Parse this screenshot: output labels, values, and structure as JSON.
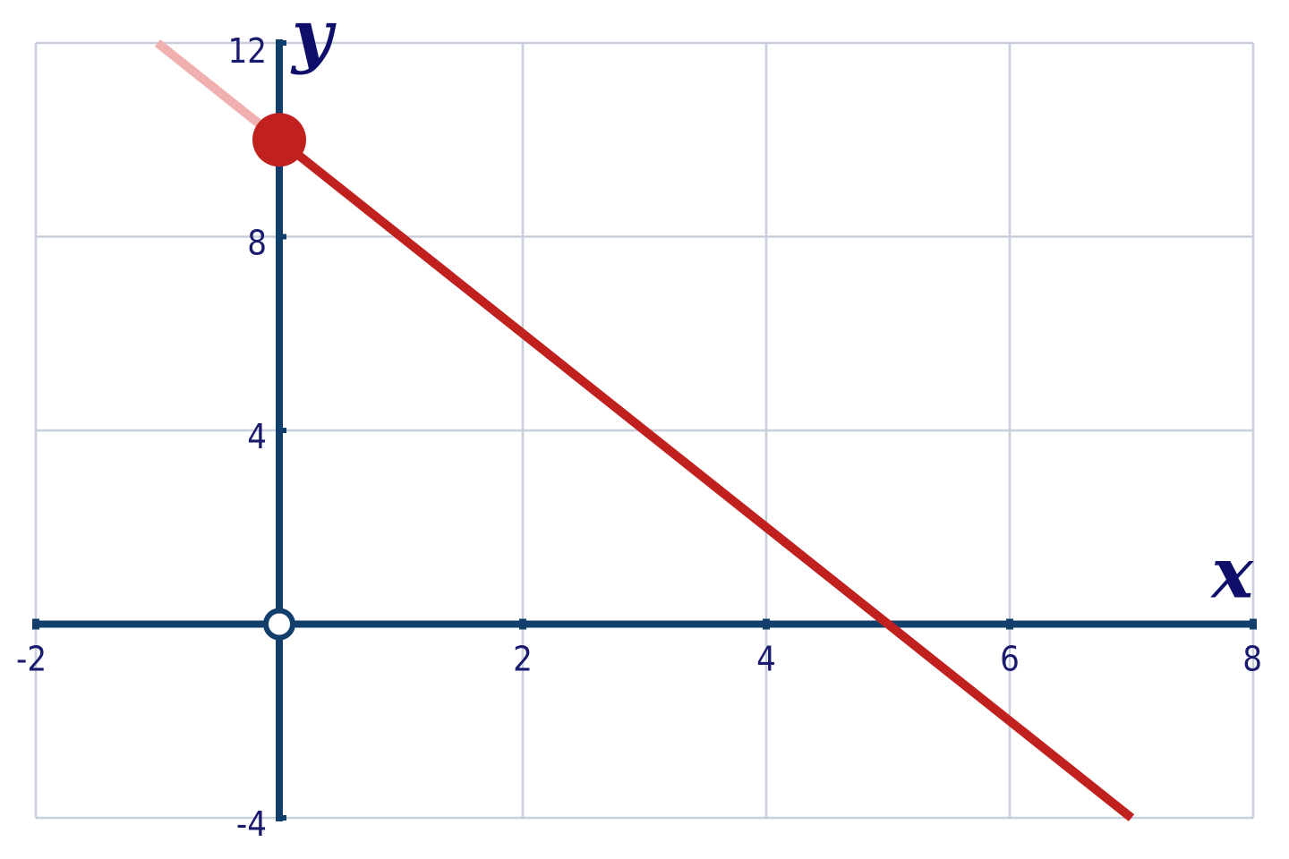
{
  "chart_data": {
    "type": "line",
    "xlabel": "x",
    "ylabel": "y",
    "xlim": [
      -2,
      8
    ],
    "ylim": [
      -4,
      12
    ],
    "x_ticks": [
      -2,
      2,
      4,
      6,
      8
    ],
    "y_ticks": [
      -4,
      4,
      8,
      12
    ],
    "x_tick_labels": [
      "-2",
      "2",
      "4",
      "6",
      "8"
    ],
    "y_tick_labels": [
      "-4",
      "4",
      "8",
      "12"
    ],
    "grid": true,
    "series": [
      {
        "type": "line",
        "x": [
          0,
          7
        ],
        "y": [
          10,
          -4
        ],
        "color": "#c0201e"
      },
      {
        "type": "line",
        "x": [
          -1,
          0
        ],
        "y": [
          12,
          10
        ],
        "color": "#f0b0b0"
      }
    ],
    "points": [
      {
        "x": 0,
        "y": 10,
        "color": "#c0201e",
        "filled": true
      }
    ],
    "origin_marker": {
      "x": 0,
      "y": 0,
      "style": "circled-cross"
    },
    "colors": {
      "grid": "#c8cfdc",
      "axis": "#123e6b",
      "text": "#1a1a6e",
      "line": "#c0201e",
      "line_faded": "#f0b0b0"
    }
  }
}
